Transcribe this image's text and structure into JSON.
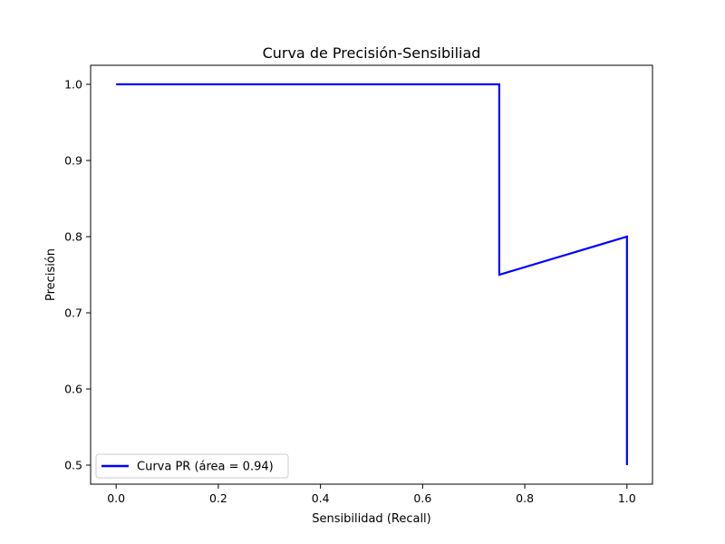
{
  "chart_data": {
    "type": "line",
    "title": "Curva de Precisión-Sensibiliad",
    "xlabel": "Sensibilidad (Recall)",
    "ylabel": "Precisión",
    "xlim": [
      -0.05,
      1.05
    ],
    "ylim": [
      0.475,
      1.025
    ],
    "x_ticks": [
      0.0,
      0.2,
      0.4,
      0.6,
      0.8,
      1.0
    ],
    "x_tick_labels": [
      "0.0",
      "0.2",
      "0.4",
      "0.6",
      "0.8",
      "1.0"
    ],
    "y_ticks": [
      0.5,
      0.6,
      0.7,
      0.8,
      0.9,
      1.0
    ],
    "y_tick_labels": [
      "0.5",
      "0.6",
      "0.7",
      "0.8",
      "0.9",
      "1.0"
    ],
    "grid": false,
    "legend_position": "lower-left",
    "series": [
      {
        "name": "Curva PR (área = 0.94)",
        "color": "#0000ff",
        "x": [
          0.0,
          0.75,
          0.75,
          1.0,
          1.0
        ],
        "y": [
          1.0,
          1.0,
          0.75,
          0.8,
          0.5
        ]
      }
    ]
  }
}
